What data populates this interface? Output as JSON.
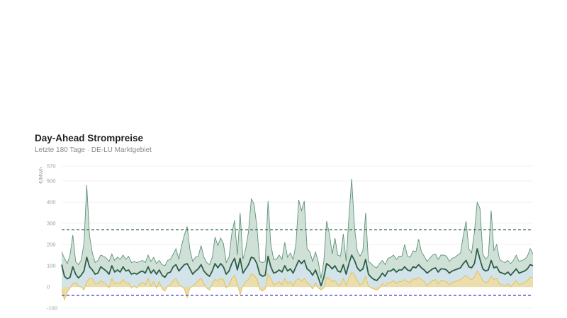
{
  "header": {
    "title": "Day-Ahead Strompreise",
    "subtitle": "Letzte 180 Tage · DE-LU Marktgebiet"
  },
  "chart_data": {
    "type": "area",
    "ylabel": "€/MWh",
    "yticks": [
      -100,
      0,
      100,
      200,
      300,
      400,
      500,
      570
    ],
    "ylim": [
      -100,
      570
    ],
    "grid": true,
    "colors": {
      "max_fill": "#cfe1d6",
      "max_line": "#5f9279",
      "avg_line": "#2f5e46",
      "min_fill": "#e9d9a3",
      "min_line": "#e3c35c",
      "neg_fill": "#f3dc90",
      "mid_fill": "#d2e4ea",
      "upper_ref": "#2f6a4a",
      "lower_ref": "#3d3fc8"
    },
    "reference_lines": [
      {
        "value": 270,
        "style": "dashed"
      },
      {
        "value": -40,
        "style": "dashed"
      }
    ],
    "series": [
      {
        "key": "max",
        "values": [
          165,
          135,
          110,
          150,
          245,
          120,
          105,
          125,
          205,
          480,
          240,
          160,
          115,
          125,
          150,
          145,
          135,
          120,
          155,
          125,
          140,
          130,
          150,
          130,
          145,
          115,
          120,
          115,
          120,
          125,
          115,
          150,
          120,
          140,
          110,
          125,
          105,
          100,
          125,
          130,
          155,
          180,
          130,
          195,
          245,
          285,
          175,
          120,
          140,
          145,
          195,
          140,
          115,
          105,
          140,
          235,
          195,
          230,
          205,
          115,
          140,
          250,
          315,
          150,
          350,
          130,
          180,
          260,
          415,
          390,
          285,
          120,
          115,
          120,
          405,
          200,
          130,
          130,
          150,
          130,
          210,
          140,
          160,
          130,
          200,
          410,
          360,
          405,
          180,
          165,
          120,
          165,
          120,
          40,
          120,
          310,
          250,
          155,
          230,
          150,
          145,
          250,
          120,
          330,
          510,
          280,
          170,
          145,
          170,
          350,
          120,
          110,
          95,
          90,
          110,
          125,
          105,
          135,
          140,
          150,
          130,
          145,
          145,
          200,
          145,
          140,
          170,
          165,
          225,
          165,
          145,
          120,
          135,
          150,
          155,
          130,
          150,
          150,
          145,
          120,
          135,
          140,
          150,
          160,
          240,
          310,
          180,
          160,
          260,
          400,
          370,
          155,
          130,
          145,
          360,
          170,
          200,
          130,
          120,
          115,
          125,
          110,
          125,
          150,
          120,
          125,
          130,
          145,
          180,
          155
        ]
      },
      {
        "key": "avg",
        "values": [
          105,
          50,
          38,
          45,
          95,
          60,
          42,
          55,
          75,
          140,
          95,
          80,
          60,
          65,
          95,
          85,
          75,
          60,
          100,
          70,
          80,
          70,
          95,
          75,
          80,
          60,
          65,
          60,
          70,
          75,
          65,
          95,
          65,
          80,
          60,
          80,
          55,
          45,
          65,
          70,
          95,
          105,
          75,
          90,
          105,
          110,
          85,
          60,
          75,
          85,
          105,
          75,
          60,
          50,
          75,
          110,
          90,
          110,
          95,
          60,
          75,
          110,
          135,
          80,
          135,
          65,
          85,
          105,
          140,
          135,
          110,
          60,
          50,
          55,
          145,
          95,
          65,
          70,
          80,
          70,
          100,
          75,
          85,
          65,
          95,
          125,
          110,
          125,
          85,
          75,
          55,
          80,
          45,
          5,
          45,
          110,
          100,
          85,
          100,
          75,
          70,
          105,
          60,
          110,
          150,
          125,
          90,
          75,
          85,
          130,
          60,
          45,
          35,
          30,
          45,
          65,
          50,
          75,
          75,
          85,
          70,
          80,
          80,
          95,
          80,
          75,
          95,
          90,
          105,
          90,
          80,
          65,
          75,
          85,
          90,
          70,
          85,
          85,
          80,
          65,
          75,
          80,
          85,
          90,
          110,
          125,
          95,
          90,
          110,
          180,
          130,
          85,
          75,
          80,
          125,
          90,
          95,
          70,
          65,
          60,
          70,
          55,
          70,
          85,
          65,
          70,
          75,
          85,
          105,
          100
        ]
      },
      {
        "key": "min",
        "values": [
          -15,
          -60,
          -25,
          -5,
          15,
          20,
          5,
          0,
          -15,
          25,
          40,
          40,
          15,
          15,
          30,
          20,
          10,
          -5,
          40,
          15,
          20,
          15,
          35,
          20,
          20,
          -5,
          5,
          -5,
          15,
          20,
          10,
          40,
          5,
          25,
          -5,
          25,
          -10,
          -20,
          5,
          10,
          30,
          40,
          10,
          5,
          -10,
          -50,
          -5,
          5,
          15,
          30,
          40,
          15,
          -5,
          -15,
          15,
          35,
          30,
          40,
          35,
          -5,
          10,
          40,
          55,
          15,
          -35,
          5,
          25,
          35,
          60,
          55,
          40,
          -10,
          -20,
          -10,
          60,
          40,
          10,
          15,
          25,
          10,
          40,
          15,
          25,
          5,
          30,
          40,
          25,
          40,
          20,
          10,
          -10,
          20,
          -5,
          -15,
          -5,
          45,
          40,
          25,
          30,
          10,
          10,
          40,
          5,
          40,
          70,
          55,
          30,
          10,
          20,
          50,
          5,
          -5,
          -10,
          -15,
          -5,
          15,
          5,
          20,
          20,
          30,
          15,
          25,
          25,
          35,
          25,
          20,
          40,
          35,
          45,
          35,
          25,
          5,
          20,
          30,
          35,
          15,
          30,
          30,
          25,
          10,
          20,
          25,
          30,
          35,
          45,
          55,
          40,
          35,
          45,
          75,
          55,
          30,
          20,
          25,
          50,
          35,
          40,
          15,
          10,
          5,
          15,
          0,
          15,
          30,
          10,
          15,
          20,
          30,
          45,
          45
        ]
      }
    ]
  }
}
